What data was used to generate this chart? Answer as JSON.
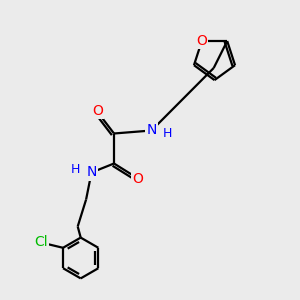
{
  "background_color": "#ebebeb",
  "bond_color": "#000000",
  "atom_colors": {
    "O": "#ff0000",
    "N": "#0000ff",
    "Cl": "#00bb00",
    "C": "#000000",
    "H": "#0000ff"
  },
  "figsize": [
    3.0,
    3.0
  ],
  "dpi": 100
}
